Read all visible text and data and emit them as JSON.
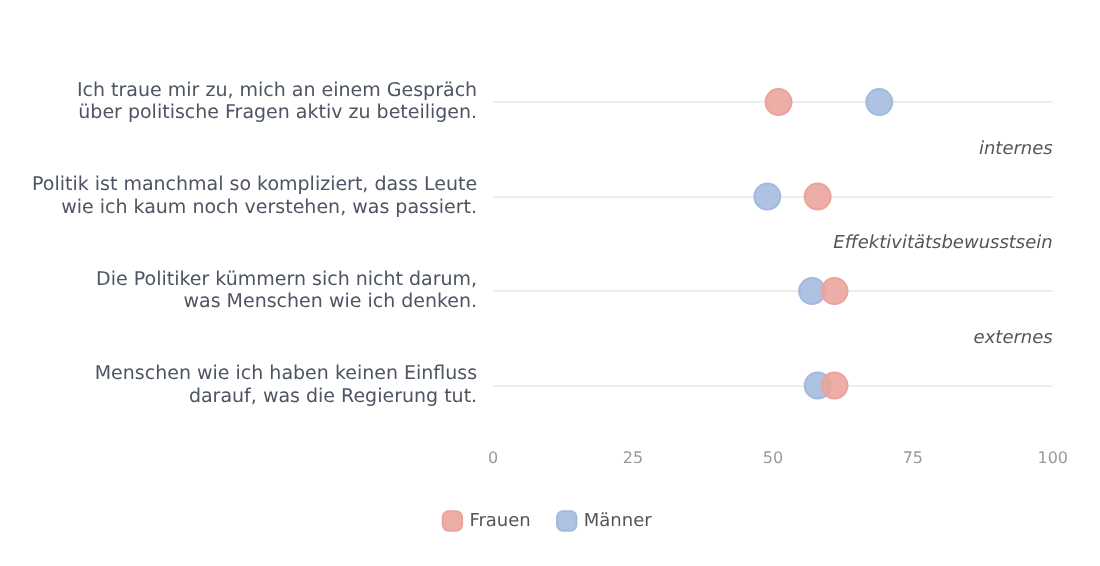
{
  "chart_data": {
    "type": "scatter",
    "orientation": "horizontal",
    "categories": [
      "Ich traue mir zu, mich an einem Gespräch\nüber politische Fragen aktiv zu beteiligen.",
      "Politik ist manchmal so kompliziert, dass Leute\nwie ich kaum noch verstehen, was passiert.",
      "Die Politiker kümmern sich nicht darum,\nwas Menschen wie ich denken.",
      "Menschen wie ich haben keinen Einfluss\ndarauf, was die Regierung tut."
    ],
    "series": [
      {
        "name": "Frauen",
        "color": "#eba39b",
        "values": [
          51,
          58,
          61,
          61
        ]
      },
      {
        "name": "Männer",
        "color": "#a3b9de",
        "values": [
          69,
          49,
          57,
          58
        ]
      }
    ],
    "xlim": [
      0,
      100
    ],
    "xticks": [
      0,
      25,
      50,
      75,
      100
    ],
    "grid": "y",
    "legend": "bottom",
    "marker": "circle",
    "annotations": [
      "internes",
      "Effektivitätsbewusstsein",
      "externes"
    ]
  }
}
